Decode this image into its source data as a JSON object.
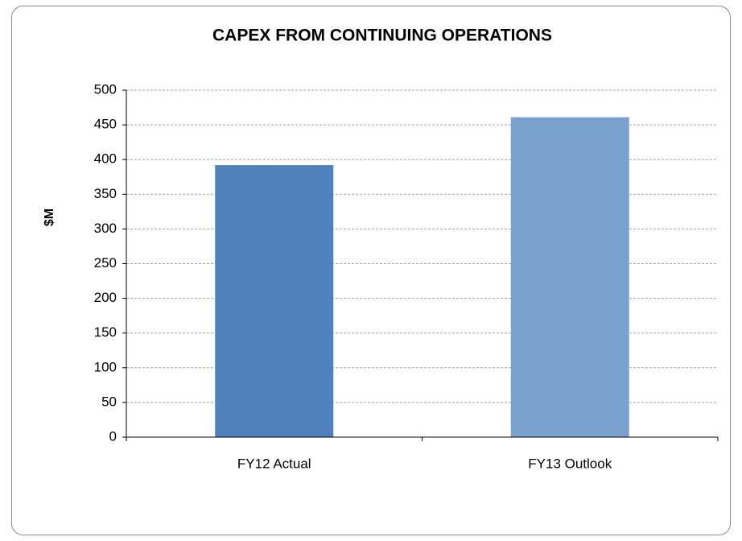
{
  "chart_data": {
    "type": "bar",
    "title": "CAPEX FROM CONTINUING OPERATIONS",
    "y_label": "$M",
    "categories": [
      "FY12 Actual",
      "FY13 Outlook"
    ],
    "values": [
      392,
      461
    ],
    "colors": [
      "#4f81bd",
      "#7ba1cf"
    ],
    "ylim": [
      0,
      500
    ],
    "yticks": [
      0,
      50,
      100,
      150,
      200,
      250,
      300,
      350,
      400,
      450,
      500
    ],
    "grid": true
  }
}
